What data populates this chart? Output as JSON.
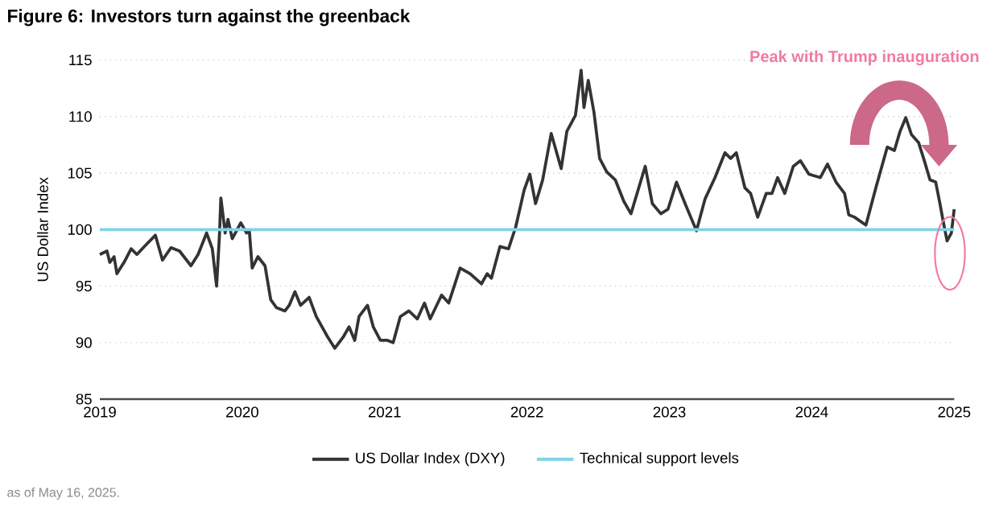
{
  "chart_data": {
    "type": "line",
    "title": "Figure 6: Investors turn against the greenback",
    "ylabel": "US Dollar Index",
    "annotations": [
      "Peak with Trump inauguration",
      "as of May 16, 2025."
    ],
    "xlim": [
      2019,
      2025
    ],
    "xticks": [
      2019,
      2020,
      2021,
      2022,
      2023,
      2024,
      2025
    ],
    "ylim": [
      85,
      115
    ],
    "yticks": [
      85,
      90,
      95,
      100,
      105,
      110,
      115
    ],
    "grid": "y",
    "legend": "bottom",
    "marker": "none",
    "line_style": "solid",
    "ref_lines": [
      {
        "axis": "y",
        "value": 100,
        "label": "Technical support levels",
        "color": "#7fd3e8"
      }
    ],
    "series": [
      {
        "name": "US Dollar Index (DXY)",
        "color": "#333333",
        "x": [
          2019.0,
          2019.05,
          2019.07,
          2019.1,
          2019.12,
          2019.17,
          2019.22,
          2019.26,
          2019.32,
          2019.39,
          2019.44,
          2019.5,
          2019.56,
          2019.64,
          2019.69,
          2019.75,
          2019.79,
          2019.82,
          2019.84,
          2019.85,
          2019.88,
          2019.9,
          2019.93,
          2019.99,
          2020.03,
          2020.05,
          2020.07,
          2020.11,
          2020.16,
          2020.2,
          2020.24,
          2020.3,
          2020.33,
          2020.37,
          2020.41,
          2020.47,
          2020.52,
          2020.6,
          2020.65,
          2020.71,
          2020.75,
          2020.79,
          2020.82,
          2020.88,
          2020.92,
          2020.97,
          2021.02,
          2021.06,
          2021.11,
          2021.17,
          2021.23,
          2021.28,
          2021.32,
          2021.4,
          2021.45,
          2021.53,
          2021.6,
          2021.68,
          2021.72,
          2021.75,
          2021.81,
          2021.87,
          2021.92,
          2021.98,
          2022.02,
          2022.06,
          2022.11,
          2022.17,
          2022.24,
          2022.28,
          2022.34,
          2022.38,
          2022.4,
          2022.43,
          2022.47,
          2022.51,
          2022.56,
          2022.62,
          2022.68,
          2022.73,
          2022.83,
          2022.88,
          2022.94,
          2022.99,
          2023.05,
          2023.11,
          2023.15,
          2023.19,
          2023.25,
          2023.32,
          2023.39,
          2023.43,
          2023.47,
          2023.53,
          2023.57,
          2023.62,
          2023.68,
          2023.72,
          2023.76,
          2023.81,
          2023.87,
          2023.92,
          2023.98,
          2024.06,
          2024.11,
          2024.17,
          2024.23,
          2024.26,
          2024.3,
          2024.38,
          2024.45,
          2024.53,
          2024.58,
          2024.62,
          2024.66,
          2024.7,
          2024.75,
          2024.79,
          2024.83,
          2024.87,
          2024.9,
          2024.92,
          2024.95,
          2024.98,
          2025.0
        ],
        "values": [
          97.8,
          98.1,
          97.1,
          97.6,
          96.1,
          97.1,
          98.3,
          97.8,
          98.6,
          99.5,
          97.3,
          98.4,
          98.1,
          96.8,
          97.8,
          99.7,
          98.3,
          95.0,
          99.5,
          102.8,
          99.7,
          100.9,
          99.2,
          100.6,
          99.7,
          99.9,
          96.6,
          97.6,
          96.8,
          93.8,
          93.1,
          92.8,
          93.3,
          94.5,
          93.3,
          94.0,
          92.3,
          90.5,
          89.5,
          90.5,
          91.4,
          90.2,
          92.3,
          93.3,
          91.4,
          90.2,
          90.2,
          90.0,
          92.3,
          92.8,
          92.1,
          93.5,
          92.1,
          94.2,
          93.5,
          96.6,
          96.1,
          95.2,
          96.1,
          95.7,
          98.5,
          98.3,
          100.2,
          103.5,
          104.9,
          102.3,
          104.4,
          108.5,
          105.4,
          108.7,
          110.1,
          114.1,
          110.8,
          113.2,
          110.4,
          106.3,
          105.1,
          104.4,
          102.5,
          101.4,
          105.6,
          102.3,
          101.4,
          101.8,
          104.2,
          102.3,
          101.1,
          99.9,
          102.7,
          104.6,
          106.8,
          106.3,
          106.8,
          103.7,
          103.2,
          101.1,
          103.2,
          103.2,
          104.6,
          103.2,
          105.6,
          106.1,
          104.9,
          104.6,
          105.8,
          104.2,
          103.2,
          101.3,
          101.1,
          100.4,
          103.7,
          107.3,
          107.0,
          108.7,
          109.9,
          108.4,
          107.7,
          106.1,
          104.4,
          104.2,
          102.3,
          100.9,
          99.0,
          99.7,
          101.8
        ]
      }
    ]
  }
}
